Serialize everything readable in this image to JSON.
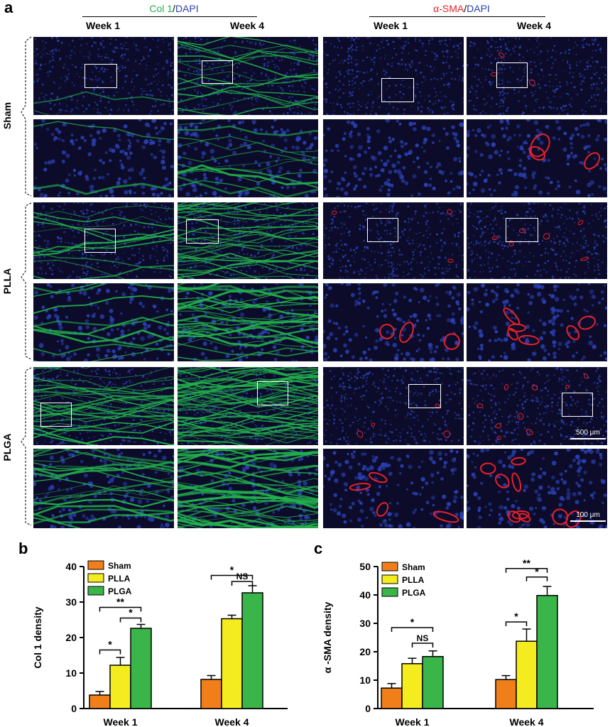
{
  "panel_letters": {
    "a": "a",
    "b": "b",
    "c": "c"
  },
  "micrographs": {
    "col_header_left_parts": {
      "col": "Col 1",
      "sep": "/",
      "dapi": "DAPI"
    },
    "col_header_right_parts": {
      "sma": "α-SMA",
      "sep": "/",
      "dapi": "DAPI"
    },
    "week_labels": [
      "Week 1",
      "Week 4",
      "Week 1",
      "Week 4"
    ],
    "row_labels": [
      "Sham",
      "PLLA",
      "PLGA"
    ],
    "scale_bar_low": "500 μm",
    "scale_bar_high": "100 μm",
    "stain_colors": {
      "col1": "#22b14c",
      "dapi": "#2a3fb0",
      "sma": "#e8202a",
      "background": "#0c0c2a"
    }
  },
  "chart_data": [
    {
      "type": "bar",
      "panel": "b",
      "ylabel": "Col 1 density",
      "categories": [
        "Week 1",
        "Week 4"
      ],
      "ylim": [
        0,
        40
      ],
      "yticks": [
        0,
        10,
        20,
        30,
        40
      ],
      "series": [
        {
          "name": "Sham",
          "color": "#f07f1a",
          "values": [
            3.8,
            8.2
          ],
          "errors": [
            1.0,
            1.1
          ]
        },
        {
          "name": "PLLA",
          "color": "#f5ec1f",
          "values": [
            12.2,
            25.3
          ],
          "errors": [
            2.2,
            1.0
          ]
        },
        {
          "name": "PLGA",
          "color": "#3ab54a",
          "values": [
            22.6,
            32.6
          ],
          "errors": [
            1.1,
            2.0
          ]
        }
      ],
      "significance": [
        {
          "group": 0,
          "from": 0,
          "to": 1,
          "label": "*",
          "y": 16.5
        },
        {
          "group": 0,
          "from": 1,
          "to": 2,
          "label": "*",
          "y": 25.5
        },
        {
          "group": 0,
          "from": 0,
          "to": 2,
          "label": "**",
          "y": 28.5
        },
        {
          "group": 1,
          "from": 0,
          "to": 2,
          "label": "*",
          "y": 37.5
        },
        {
          "group": 1,
          "from": 1,
          "to": 2,
          "label": "NS",
          "y": 35.8
        }
      ],
      "legend_position": "top-left"
    },
    {
      "type": "bar",
      "panel": "c",
      "ylabel": "α -SMA density",
      "categories": [
        "Week 1",
        "Week 4"
      ],
      "ylim": [
        0,
        50
      ],
      "yticks": [
        0,
        10,
        20,
        30,
        40,
        50
      ],
      "series": [
        {
          "name": "Sham",
          "color": "#f07f1a",
          "values": [
            7.2,
            10.2
          ],
          "errors": [
            1.6,
            1.4
          ]
        },
        {
          "name": "PLLA",
          "color": "#f5ec1f",
          "values": [
            15.8,
            23.7
          ],
          "errors": [
            1.9,
            4.3
          ]
        },
        {
          "name": "PLGA",
          "color": "#3ab54a",
          "values": [
            18.3,
            39.8
          ],
          "errors": [
            2.0,
            3.2
          ]
        }
      ],
      "significance": [
        {
          "group": 0,
          "from": 0,
          "to": 2,
          "label": "*",
          "y": 28.5
        },
        {
          "group": 0,
          "from": 1,
          "to": 2,
          "label": "NS",
          "y": 23.0
        },
        {
          "group": 1,
          "from": 0,
          "to": 1,
          "label": "*",
          "y": 30.5
        },
        {
          "group": 1,
          "from": 1,
          "to": 2,
          "label": "*",
          "y": 46.3
        },
        {
          "group": 1,
          "from": 0,
          "to": 2,
          "label": "**",
          "y": 49.3
        }
      ],
      "legend_position": "top-left"
    }
  ]
}
